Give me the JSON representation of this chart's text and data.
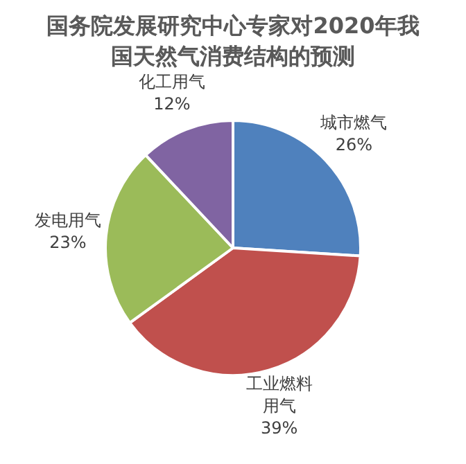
{
  "chart_data": {
    "type": "pie",
    "title": "国务院发展研究中心专家对2020年我国天然气消费结构的预测",
    "categories": [
      "城市燃气",
      "工业燃料用气",
      "发电用气",
      "化工用气"
    ],
    "values": [
      26,
      39,
      23,
      12
    ],
    "value_labels": [
      "26%",
      "39%",
      "23%",
      "12%"
    ],
    "colors": [
      "#4f81bd",
      "#c0504d",
      "#9bbb59",
      "#8064a2"
    ],
    "legend": false
  }
}
